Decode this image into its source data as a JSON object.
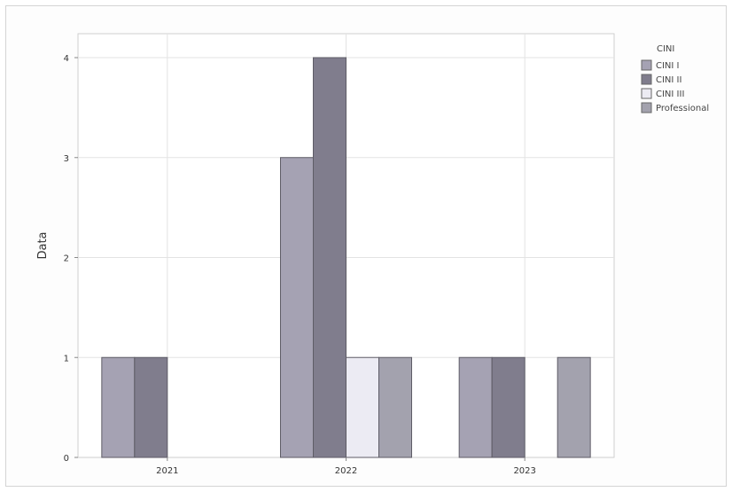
{
  "chart_data": {
    "type": "bar",
    "categories": [
      "2021",
      "2022",
      "2023"
    ],
    "series": [
      {
        "name": "CINI I",
        "color": "#a5a2b3",
        "values": [
          1,
          3,
          1
        ]
      },
      {
        "name": "CINI II",
        "color": "#807d8d",
        "values": [
          1,
          4,
          1
        ]
      },
      {
        "name": "CINI III",
        "color": "#ecebf3",
        "values": [
          0,
          1,
          0
        ]
      },
      {
        "name": "Professional",
        "color": "#a3a2ae",
        "values": [
          0,
          1,
          1
        ]
      }
    ],
    "ylabel": "Data",
    "xlabel": "",
    "ylim": [
      0,
      4
    ],
    "yticks": [
      0,
      1,
      2,
      3,
      4
    ],
    "legend_title": "CINI",
    "legend_position": "right",
    "grid": true
  }
}
